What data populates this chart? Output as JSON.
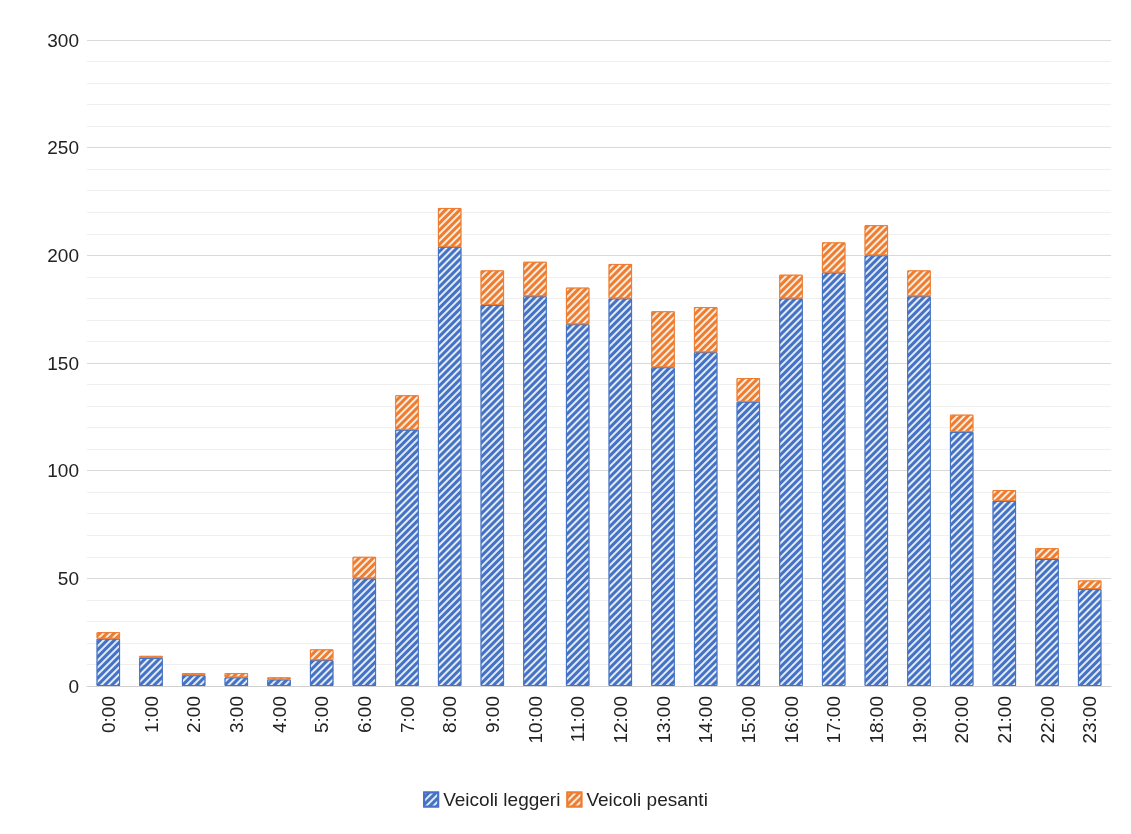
{
  "chart_data": {
    "type": "bar",
    "stacked": true,
    "categories": [
      "0:00",
      "1:00",
      "2:00",
      "3:00",
      "4:00",
      "5:00",
      "6:00",
      "7:00",
      "8:00",
      "9:00",
      "10:00",
      "11:00",
      "12:00",
      "13:00",
      "14:00",
      "15:00",
      "16:00",
      "17:00",
      "18:00",
      "19:00",
      "20:00",
      "21:00",
      "22:00",
      "23:00"
    ],
    "series": [
      {
        "name": "Veicoli leggeri",
        "color": "#4472c4",
        "values": [
          22,
          13,
          5,
          4,
          3,
          12,
          50,
          119,
          204,
          177,
          181,
          168,
          180,
          148,
          155,
          132,
          180,
          192,
          200,
          181,
          118,
          86,
          59,
          45
        ]
      },
      {
        "name": "Veicoli pesanti",
        "color": "#ed7d31",
        "values": [
          3,
          1,
          1,
          2,
          1,
          5,
          10,
          16,
          18,
          16,
          16,
          17,
          16,
          26,
          21,
          11,
          11,
          14,
          14,
          12,
          8,
          5,
          5,
          4
        ]
      }
    ],
    "ylim": [
      0,
      300
    ],
    "yticks": [
      0,
      50,
      100,
      150,
      200,
      250,
      300
    ],
    "grid": "y",
    "legend": "bottom"
  }
}
